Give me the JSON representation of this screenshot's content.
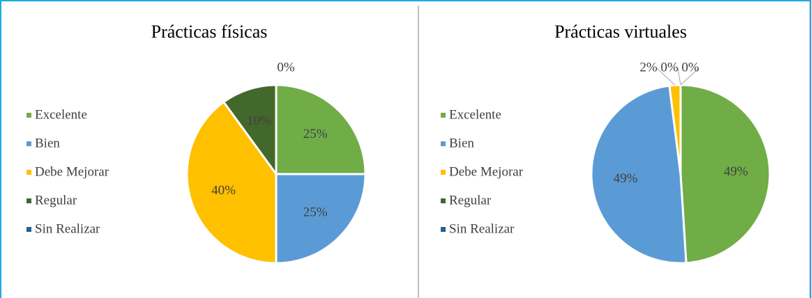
{
  "chart_data": [
    {
      "type": "pie",
      "title": "Prácticas físicas",
      "categories": [
        "Excelente",
        "Bien",
        "Debe Mejorar",
        "Regular",
        "Sin Realizar"
      ],
      "values": [
        25,
        25,
        40,
        10,
        0
      ],
      "value_labels": [
        "25%",
        "25%",
        "40%",
        "10%",
        "0%"
      ],
      "colors": [
        "#70ad47",
        "#5b9bd5",
        "#ffc000",
        "#43682b",
        "#255e91"
      ],
      "legend": "left"
    },
    {
      "type": "pie",
      "title": "Prácticas virtuales",
      "categories": [
        "Excelente",
        "Bien",
        "Debe Mejorar",
        "Regular",
        "Sin Realizar"
      ],
      "values": [
        49,
        49,
        2,
        0,
        0
      ],
      "value_labels": [
        "49%",
        "49%",
        "2%",
        "0%",
        "0%"
      ],
      "colors": [
        "#70ad47",
        "#5b9bd5",
        "#ffc000",
        "#43682b",
        "#255e91"
      ],
      "legend": "left"
    }
  ]
}
